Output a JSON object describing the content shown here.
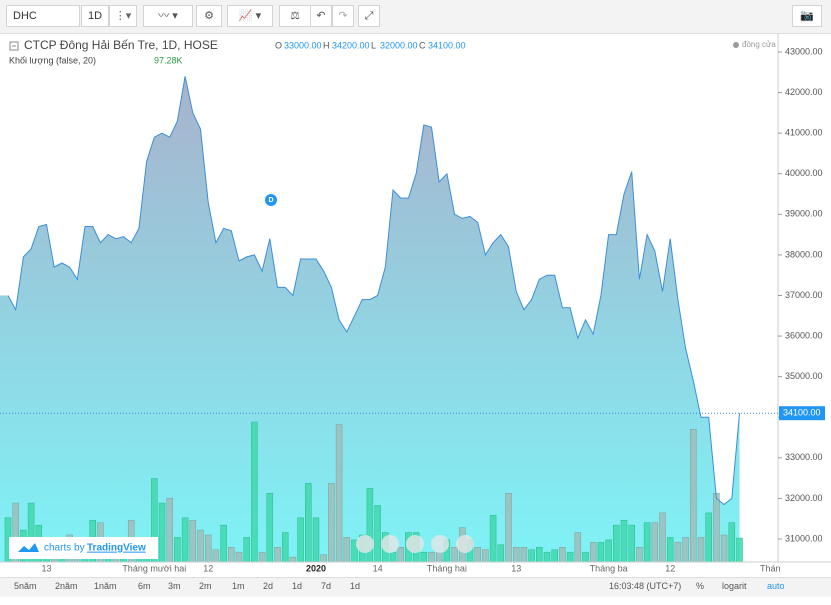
{
  "toolbar": {
    "symbol": "DHC",
    "interval": "1D",
    "branding": "charts by",
    "brand": "TradingView",
    "ranges": [
      "5năm",
      "2năm",
      "1năm",
      "6m",
      "3m",
      "2m",
      "1m",
      "2d",
      "1d",
      "7d",
      "1d"
    ],
    "clock": "16:03:48 (UTC+7)",
    "percent": "%",
    "log": "logarit",
    "auto": "auto"
  },
  "chart_data": {
    "type": "area",
    "title": "CTCP Đông Hải Bến Tre, 1D, HOSE",
    "ohlc": [
      {
        "label": "O",
        "value": "33000.00"
      },
      {
        "label": "H",
        "value": "34200.00"
      },
      {
        "label": "L",
        "value": "32000.00"
      },
      {
        "label": "C",
        "value": "34100.00"
      }
    ],
    "last_label": "34100.00",
    "categories": [
      null,
      null,
      null,
      null,
      null,
      "13",
      null,
      null,
      null,
      null,
      null,
      null,
      null,
      null,
      null,
      null,
      null,
      null,
      null,
      "Tháng mười hai",
      null,
      null,
      null,
      null,
      null,
      null,
      "12",
      null,
      null,
      null,
      null,
      null,
      null,
      null,
      null,
      null,
      null,
      null,
      null,
      null,
      "2020",
      null,
      null,
      null,
      null,
      null,
      null,
      null,
      "14",
      null,
      null,
      null,
      null,
      null,
      null,
      null,
      null,
      "Tháng hai",
      null,
      null,
      null,
      null,
      null,
      null,
      null,
      null,
      "13",
      null,
      null,
      null,
      null,
      null,
      null,
      null,
      null,
      null,
      null,
      null,
      "Tháng ba",
      null,
      null,
      null,
      null,
      null,
      null,
      null,
      "12",
      null,
      null,
      null,
      null,
      null,
      null,
      null,
      null,
      null,
      null,
      null,
      null,
      "Thán"
    ],
    "series": [
      {
        "name": "đóng cửa",
        "color": "#3d8ed8",
        "values": [
          37000,
          36650,
          37950,
          38150,
          38700,
          38750,
          37700,
          37800,
          37700,
          37400,
          38700,
          38700,
          38300,
          38500,
          38400,
          38450,
          38300,
          38650,
          40300,
          40900,
          41000,
          40900,
          41300,
          42400,
          41500,
          41100,
          39300,
          38300,
          38650,
          38600,
          37850,
          37950,
          38000,
          37600,
          38400,
          37200,
          37200,
          37000,
          37900,
          37900,
          37900,
          37600,
          37200,
          36400,
          36100,
          36500,
          36900,
          36900,
          37000,
          37700,
          39600,
          39400,
          39400,
          40000,
          41200,
          41150,
          39800,
          40000,
          39000,
          38900,
          38950,
          38800,
          38000,
          38300,
          38500,
          38200,
          37100,
          36650,
          36900,
          37400,
          37500,
          37500,
          36700,
          36700,
          35950,
          36400,
          36050,
          37000,
          38500,
          38500,
          39500,
          40050,
          37400,
          38500,
          38100,
          37100,
          38400,
          36900,
          35700,
          34900,
          34000,
          34000,
          32000,
          31850,
          32000,
          34100,
          null,
          null,
          null,
          null
        ]
      }
    ],
    "volume": {
      "name": "Khối lượng (false, 20)",
      "last_label": "97.28K",
      "up_color": "#3fd8ac",
      "down_color": "#9fbdb9",
      "values": [
        180,
        240,
        130,
        240,
        150,
        90,
        60,
        60,
        110,
        60,
        80,
        170,
        160,
        60,
        50,
        60,
        170,
        60,
        60,
        340,
        240,
        260,
        100,
        180,
        170,
        130,
        110,
        50,
        150,
        60,
        40,
        100,
        570,
        40,
        280,
        60,
        120,
        20,
        180,
        320,
        180,
        30,
        320,
        560,
        100,
        90,
        110,
        300,
        230,
        120,
        40,
        60,
        120,
        120,
        40,
        40,
        40,
        90,
        60,
        140,
        90,
        60,
        50,
        190,
        70,
        280,
        60,
        60,
        50,
        60,
        40,
        50,
        60,
        40,
        120,
        40,
        80,
        80,
        90,
        150,
        170,
        150,
        60,
        160,
        160,
        200,
        100,
        80,
        100,
        540,
        100,
        200,
        280,
        110,
        160,
        97.28,
        null,
        null,
        null,
        null
      ]
    },
    "ylim": [
      30700,
      43300
    ],
    "yticks": [
      {
        "value": 31000,
        "label": "31000.00"
      },
      {
        "value": 32000,
        "label": "32000.00"
      },
      {
        "value": 33000,
        "label": "33000.00"
      },
      {
        "value": 34000,
        "label": "34000.00"
      },
      {
        "value": 35000,
        "label": "35000.00"
      },
      {
        "value": 36000,
        "label": "36000.00"
      },
      {
        "value": 37000,
        "label": "37000.00"
      },
      {
        "value": 38000,
        "label": "38000.00"
      },
      {
        "value": 39000,
        "label": "39000.00"
      },
      {
        "value": 40000,
        "label": "40000.00"
      },
      {
        "value": 41000,
        "label": "41000.00"
      },
      {
        "value": 42000,
        "label": "42000.00"
      },
      {
        "value": 43000,
        "label": "43000.00"
      }
    ],
    "grid": false
  }
}
